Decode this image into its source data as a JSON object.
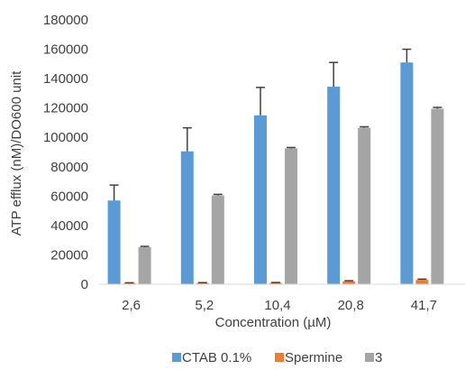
{
  "chart_data": {
    "type": "bar",
    "title": "",
    "xlabel": "Concentration (µM)",
    "ylabel": "ATP efflux (nM)/DO600 unit",
    "ylim": [
      0,
      180000
    ],
    "yticks": [
      0,
      20000,
      40000,
      60000,
      80000,
      100000,
      120000,
      140000,
      160000,
      180000
    ],
    "ytick_labels": [
      "0",
      "20000",
      "40000",
      "60000",
      "80000",
      "100000",
      "120000",
      "140000",
      "160000",
      "180000"
    ],
    "categories": [
      "2,6",
      "5,2",
      "10,4",
      "20,8",
      "41,7"
    ],
    "grid": false,
    "legend_position": "bottom",
    "series": [
      {
        "name": "CTAB 0.1%",
        "color": "#5B9BD5",
        "values": [
          57000,
          90500,
          115000,
          134500,
          151000
        ],
        "errors": [
          10500,
          16000,
          19000,
          16500,
          9000
        ]
      },
      {
        "name": "Spermine",
        "color": "#ED7D31",
        "values": [
          700,
          800,
          900,
          2000,
          3000
        ],
        "errors": [
          300,
          300,
          300,
          400,
          500
        ]
      },
      {
        "name": "3",
        "color": "#A5A5A5",
        "values": [
          25200,
          60500,
          92500,
          106500,
          119500
        ],
        "errors": [
          600,
          700,
          600,
          700,
          900
        ]
      }
    ]
  }
}
